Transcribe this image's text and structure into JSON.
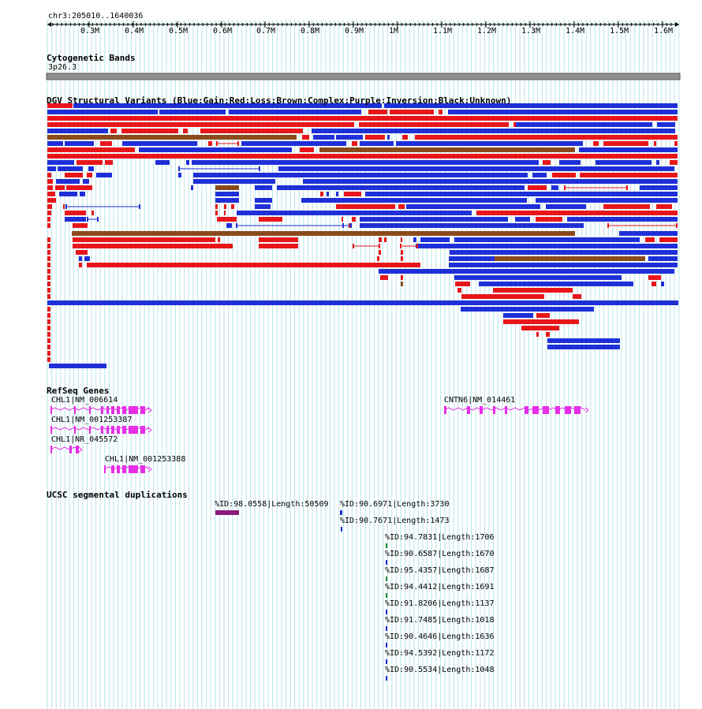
{
  "ruler": {
    "range_label": "chr3:205010..1640036",
    "ticks": [
      "0.3M",
      "0.4M",
      "0.5M",
      "0.6M",
      "0.7M",
      "0.8M",
      "0.9M",
      "1M",
      "1.1M",
      "1.2M",
      "1.3M",
      "1.4M",
      "1.5M",
      "1.6M"
    ]
  },
  "cytoband": {
    "title": "Cytogenetic Bands",
    "band_label": "3p26.3"
  },
  "dgv": {
    "title": "DGV Structural Variants (Blue:Gain;Red:Loss;Brown:Complex;Purple:Inversion;Black:Unknown)",
    "colors": {
      "gain": "#1f2fd8",
      "loss": "#e8161b",
      "complex": "#8b4a1c",
      "inversion": "#7b1fa2",
      "unknown": "#000000"
    }
  },
  "refseq": {
    "title": "RefSeq Genes",
    "genes": [
      {
        "label": "CHL1|NM_006614"
      },
      {
        "label": "CHL1|NM_001253387"
      },
      {
        "label": "CHL1|NR_045572"
      },
      {
        "label": "CHL1|NM_001253388"
      },
      {
        "label": "CNTN6|NM_014461"
      }
    ],
    "color": "#e62ee6"
  },
  "segdup": {
    "title": "UCSC segmental duplications",
    "items": [
      {
        "label": "%ID:98.0558|Length:50509"
      },
      {
        "label": "%ID:90.6971|Length:3730"
      },
      {
        "label": "%ID:90.7671|Length:1473"
      },
      {
        "label": "%ID:94.7831|Length:1706"
      },
      {
        "label": "%ID:90.6587|Length:1670"
      },
      {
        "label": "%ID:95.4357|Length:1687"
      },
      {
        "label": "%ID:94.4412|Length:1691"
      },
      {
        "label": "%ID:91.8206|Length:1137"
      },
      {
        "label": "%ID:91.7485|Length:1018"
      },
      {
        "label": "%ID:90.4646|Length:1636"
      },
      {
        "label": "%ID:94.5392|Length:1172"
      },
      {
        "label": "%ID:90.5534|Length:1048"
      }
    ]
  }
}
